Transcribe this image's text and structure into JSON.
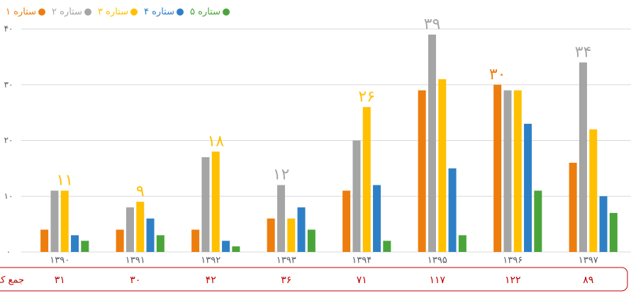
{
  "chart_data": {
    "type": "bar",
    "categories": [
      "۱۳۹۰",
      "۱۳۹۱",
      "۱۳۹۲",
      "۱۳۹۳",
      "۱۳۹۴",
      "۱۳۹۵",
      "۱۳۹۶",
      "۱۳۹۷"
    ],
    "series": [
      {
        "name": "۱ ستاره",
        "color": "#ed7d0d",
        "values": [
          4,
          4,
          4,
          6,
          11,
          29,
          30,
          16
        ],
        "value_labels": [
          null,
          null,
          null,
          null,
          null,
          null,
          "۳۰",
          null
        ]
      },
      {
        "name": "۲ ستاره",
        "color": "#a5a5a5",
        "values": [
          11,
          8,
          17,
          12,
          20,
          39,
          29,
          34
        ],
        "value_labels": [
          null,
          null,
          null,
          "۱۲",
          null,
          "۳۹",
          null,
          "۳۴"
        ]
      },
      {
        "name": "۳ ستاره",
        "color": "#ffc000",
        "values": [
          11,
          9,
          18,
          6,
          26,
          31,
          29,
          22
        ],
        "value_labels": [
          "۱۱",
          "۹",
          "۱۸",
          null,
          "۲۶",
          null,
          null,
          null
        ]
      },
      {
        "name": "۴ ستاره",
        "color": "#2e80c6",
        "values": [
          3,
          6,
          2,
          8,
          12,
          15,
          23,
          10
        ],
        "value_labels": [
          null,
          null,
          null,
          null,
          null,
          null,
          null,
          null
        ]
      },
      {
        "name": "۵ ستاره",
        "color": "#4aa43a",
        "values": [
          2,
          3,
          1,
          4,
          2,
          3,
          11,
          7
        ],
        "value_labels": [
          null,
          null,
          null,
          null,
          null,
          null,
          null,
          null
        ]
      }
    ],
    "ylim": [
      0,
      40
    ],
    "yticks": [
      {
        "value": 0,
        "label": "۰"
      },
      {
        "value": 10,
        "label": "۱۰"
      },
      {
        "value": 20,
        "label": "۲۰"
      },
      {
        "value": 30,
        "label": "۳۰"
      },
      {
        "value": 40,
        "label": "۴۰"
      }
    ],
    "grid": true,
    "legend": "top-left",
    "totals": {
      "label": "جمع کل",
      "values": [
        "۳۱",
        "۳۰",
        "۴۲",
        "۳۶",
        "۷۱",
        "۱۱۷",
        "۱۲۲",
        "۸۹"
      ],
      "color": "#c00000"
    }
  }
}
